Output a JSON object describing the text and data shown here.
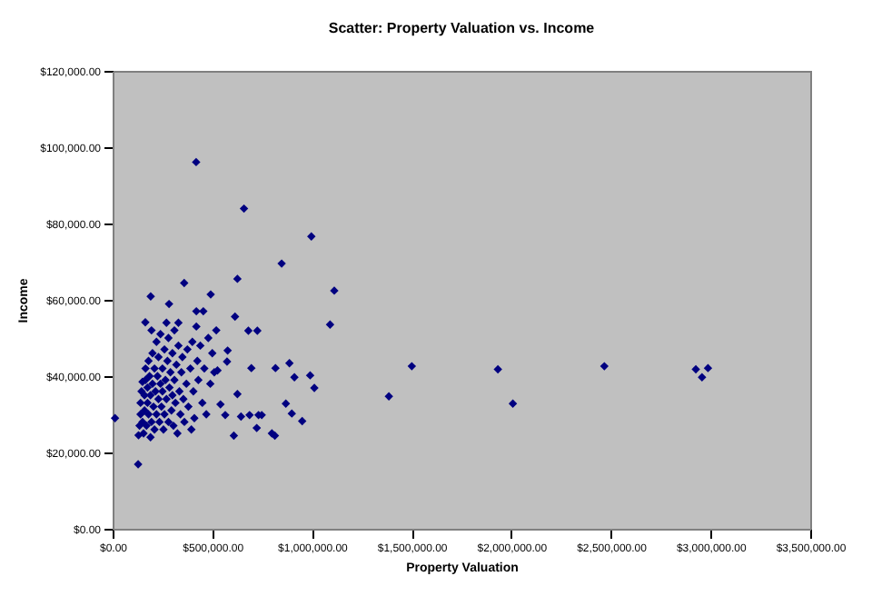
{
  "chart_data": {
    "type": "scatter",
    "title": "Scatter: Property Valuation vs. Income",
    "xlabel": "Property Valuation",
    "ylabel": "Income",
    "marker": "diamond",
    "x": [
      12000,
      128000,
      419000,
      659000,
      997000,
      848000,
      1112000,
      1091000,
      626000,
      359000,
      191000,
      492000,
      283000,
      164000,
      614000,
      681000,
      726000,
      696000,
      817000,
      887000,
      912000,
      991000,
      1012000,
      869000,
      899000,
      951000,
      799000,
      814000,
      723000,
      608000,
      626000,
      644000,
      687000,
      732000,
      748000,
      541000,
      565000,
      574000,
      577000,
      526000,
      1386000,
      1501000,
      1933000,
      2008000,
      2467000,
      2926000,
      2957000,
      2987000,
      130000,
      135000,
      140000,
      140000,
      145000,
      150000,
      150000,
      155000,
      160000,
      160000,
      165000,
      165000,
      170000,
      175000,
      175000,
      180000,
      180000,
      185000,
      190000,
      190000,
      195000,
      200000,
      200000,
      205000,
      210000,
      210000,
      215000,
      220000,
      220000,
      225000,
      230000,
      230000,
      235000,
      240000,
      240000,
      245000,
      250000,
      250000,
      255000,
      260000,
      260000,
      265000,
      270000,
      275000,
      280000,
      280000,
      285000,
      290000,
      295000,
      300000,
      300000,
      305000,
      310000,
      310000,
      315000,
      320000,
      325000,
      330000,
      335000,
      340000,
      345000,
      350000,
      355000,
      360000,
      370000,
      375000,
      380000,
      390000,
      395000,
      400000,
      405000,
      410000,
      420000,
      425000,
      430000,
      440000,
      450000,
      455000,
      460000,
      470000,
      480000,
      490000,
      500000,
      510000,
      520000,
      420000,
      270000,
      195000,
      330000
    ],
    "series": [
      {
        "color": "#000080",
        "values": [
          29000,
          16900,
          96100,
          83900,
          76600,
          69500,
          62400,
          53500,
          65500,
          64400,
          60900,
          61400,
          58900,
          54100,
          55600,
          51900,
          51900,
          42100,
          42100,
          43400,
          39700,
          40200,
          36900,
          32800,
          30200,
          28200,
          25000,
          24400,
          26400,
          24400,
          35300,
          29400,
          29800,
          29800,
          29800,
          32600,
          29800,
          43800,
          46700,
          41500,
          34700,
          42600,
          41800,
          32800,
          42600,
          41800,
          39700,
          42100,
          24500,
          27000,
          30000,
          33000,
          36000,
          38500,
          28000,
          25000,
          31000,
          35000,
          39000,
          42000,
          27000,
          33000,
          37000,
          30000,
          44000,
          40000,
          35000,
          24000,
          28000,
          46000,
          38000,
          32000,
          42000,
          26000,
          36000,
          49000,
          30000,
          40000,
          34000,
          45000,
          28000,
          38000,
          51000,
          32000,
          42000,
          36000,
          26000,
          47000,
          30000,
          39000,
          34000,
          44000,
          28000,
          50000,
          37000,
          41000,
          31000,
          46000,
          35000,
          27000,
          52000,
          39000,
          33000,
          43000,
          25000,
          48000,
          36000,
          30000,
          41000,
          45000,
          34000,
          28000,
          38000,
          47000,
          32000,
          42000,
          26000,
          49000,
          36000,
          29000,
          53000,
          44000,
          39000,
          48000,
          33000,
          57000,
          42000,
          30000,
          50000,
          38000,
          46000,
          41000,
          52000,
          57000,
          54000,
          52000,
          54000
        ]
      }
    ],
    "xlim": [
      0,
      3500000
    ],
    "xticks": [
      {
        "value": 0,
        "label": "$0.00"
      },
      {
        "value": 500000,
        "label": "$500,000.00"
      },
      {
        "value": 1000000,
        "label": "$1,000,000.00"
      },
      {
        "value": 1500000,
        "label": "$1,500,000.00"
      },
      {
        "value": 2000000,
        "label": "$2,000,000.00"
      },
      {
        "value": 2500000,
        "label": "$2,500,000.00"
      },
      {
        "value": 3000000,
        "label": "$3,000,000.00"
      },
      {
        "value": 3500000,
        "label": "$3,500,000.00"
      }
    ],
    "ylim": [
      0,
      120000
    ],
    "yticks": [
      {
        "value": 0,
        "label": "$0.00"
      },
      {
        "value": 20000,
        "label": "$20,000.00"
      },
      {
        "value": 40000,
        "label": "$40,000.00"
      },
      {
        "value": 60000,
        "label": "$60,000.00"
      },
      {
        "value": 80000,
        "label": "$80,000.00"
      },
      {
        "value": 100000,
        "label": "$100,000.00"
      },
      {
        "value": 120000,
        "label": "$120,000.00"
      }
    ]
  }
}
